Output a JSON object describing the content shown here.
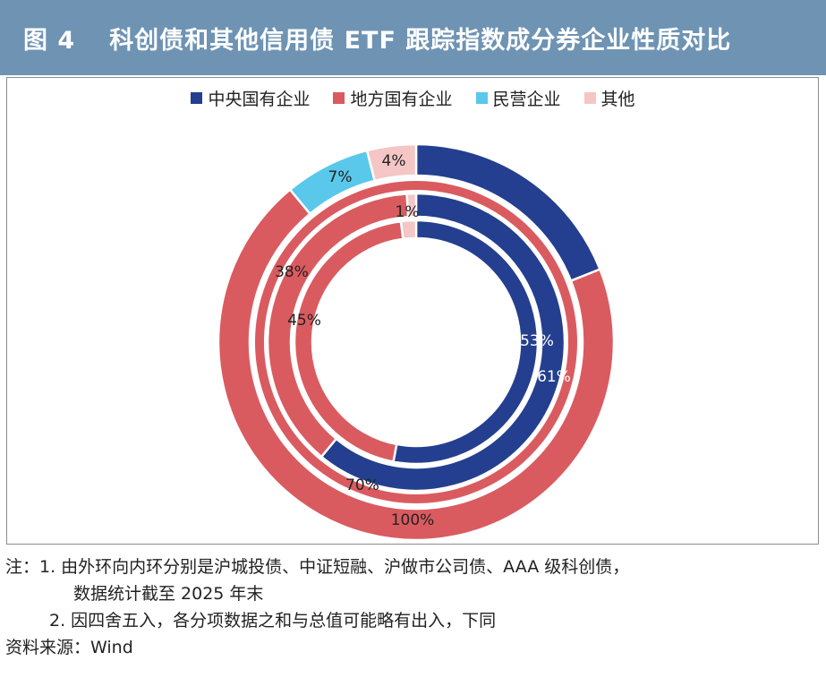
{
  "header": {
    "figure_no": "图 4",
    "title": "科创债和其他信用债 ETF 跟踪指数成分券企业性质对比"
  },
  "legend": [
    {
      "label": "中央国有企业",
      "color": "#243f8f"
    },
    {
      "label": "地方国有企业",
      "color": "#d95b60"
    },
    {
      "label": "民营企业",
      "color": "#59c8eb"
    },
    {
      "label": "其他",
      "color": "#f4c6c6"
    }
  ],
  "chart_data": {
    "type": "donut",
    "categories": [
      "中央国有企业",
      "地方国有企业",
      "民营企业",
      "其他"
    ],
    "colors": [
      "#243f8f",
      "#d95b60",
      "#59c8eb",
      "#f4c6c6"
    ],
    "rings_order": "outer-to-inner",
    "rings": [
      {
        "values": [
          19,
          70,
          7,
          4
        ],
        "labels": [
          "",
          "70%",
          "7%",
          "4%"
        ]
      },
      {
        "values": [
          0,
          100,
          0,
          0
        ],
        "labels": [
          "",
          "100%",
          "",
          ""
        ]
      },
      {
        "values": [
          61,
          38,
          0,
          1
        ],
        "labels": [
          "61%",
          "38%",
          "",
          "1%"
        ]
      },
      {
        "values": [
          53,
          45,
          0,
          2
        ],
        "labels": [
          "53%",
          "45%",
          "",
          ""
        ]
      }
    ]
  },
  "notes": {
    "line1": "注：1. 由外环向内环分别是沪城投债、中证短融、沪做市公司债、AAA 级科创债，",
    "line2": "数据统计截至 2025 年末",
    "line3": "2. 因四舍五入，各分项数据之和与总值可能略有出入，下同",
    "source": "资料来源：Wind"
  }
}
